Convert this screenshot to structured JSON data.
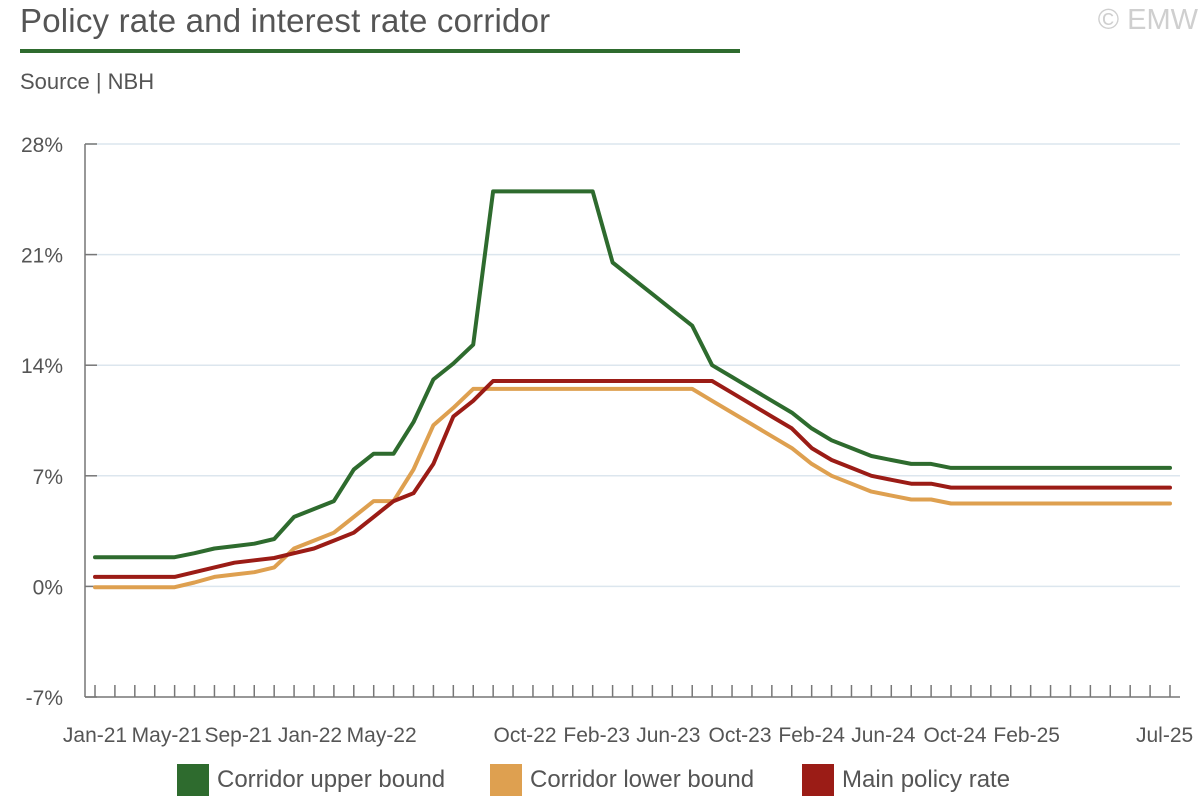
{
  "header": {
    "title": "Policy rate and interest rate corridor",
    "copyright": "© EMW",
    "source": "Source | NBH"
  },
  "colors": {
    "upper": "#2e6b2e",
    "lower": "#dea050",
    "policy": "#9b1c16",
    "grid": "#dce6ee",
    "axis": "#777777"
  },
  "chart_data": {
    "type": "line",
    "xlabel": "",
    "ylabel": "",
    "ylim": [
      -7,
      28
    ],
    "yticks": [
      -7,
      0,
      7,
      14,
      21,
      28
    ],
    "ytick_labels": [
      "-7%",
      "0%",
      "7%",
      "14%",
      "21%",
      "28%"
    ],
    "grid": "horizontal",
    "legend_position": "bottom",
    "x": [
      "Jan-21",
      "Feb-21",
      "Mar-21",
      "Apr-21",
      "May-21",
      "Jun-21",
      "Jul-21",
      "Aug-21",
      "Sep-21",
      "Oct-21",
      "Nov-21",
      "Dec-21",
      "Jan-22",
      "Feb-22",
      "Mar-22",
      "Apr-22",
      "May-22",
      "Jun-22",
      "Jul-22",
      "Aug-22",
      "Sep-22",
      "Oct-22",
      "Nov-22",
      "Dec-22",
      "Jan-23",
      "Feb-23",
      "Mar-23",
      "Apr-23",
      "May-23",
      "Jun-23",
      "Jul-23",
      "Aug-23",
      "Sep-23",
      "Oct-23",
      "Nov-23",
      "Dec-23",
      "Jan-24",
      "Feb-24",
      "Mar-24",
      "Apr-24",
      "May-24",
      "Jun-24",
      "Jul-24",
      "Aug-24",
      "Sep-24",
      "Oct-24",
      "Nov-24",
      "Dec-24",
      "Jan-25",
      "Feb-25",
      "Mar-25",
      "Apr-25",
      "May-25",
      "Jun-25",
      "Jul-25"
    ],
    "x_tick_labels": [
      "Jan-21",
      "May-21",
      "Sep-21",
      "Jan-22",
      "May-22",
      "",
      "Oct-22",
      "Feb-23",
      "Jun-23",
      "Oct-23",
      "Feb-24",
      "Jun-24",
      "Oct-24",
      "Feb-25",
      "",
      "Jul-25"
    ],
    "series": [
      {
        "name": "Corridor upper bound",
        "values": [
          1.85,
          1.85,
          1.85,
          1.85,
          1.85,
          2.1,
          2.4,
          2.55,
          2.7,
          3.0,
          4.4,
          4.9,
          5.4,
          7.4,
          8.4,
          8.4,
          10.4,
          13.1,
          14.1,
          15.3,
          25.0,
          25.0,
          25.0,
          25.0,
          25.0,
          25.0,
          20.5,
          19.5,
          18.5,
          17.5,
          16.5,
          14.0,
          13.25,
          12.5,
          11.75,
          11.0,
          10.0,
          9.25,
          8.75,
          8.25,
          8.0,
          7.75,
          7.75,
          7.5,
          7.5,
          7.5,
          7.5,
          7.5,
          7.5,
          7.5,
          7.5,
          7.5,
          7.5,
          7.5,
          7.5
        ]
      },
      {
        "name": "Corridor lower bound",
        "values": [
          -0.05,
          -0.05,
          -0.05,
          -0.05,
          -0.05,
          0.25,
          0.6,
          0.75,
          0.9,
          1.2,
          2.4,
          2.9,
          3.4,
          4.4,
          5.4,
          5.4,
          7.4,
          10.2,
          11.3,
          12.5,
          12.5,
          12.5,
          12.5,
          12.5,
          12.5,
          12.5,
          12.5,
          12.5,
          12.5,
          12.5,
          12.5,
          11.75,
          11.0,
          10.25,
          9.5,
          8.75,
          7.75,
          7.0,
          6.5,
          6.0,
          5.75,
          5.5,
          5.5,
          5.25,
          5.25,
          5.25,
          5.25,
          5.25,
          5.25,
          5.25,
          5.25,
          5.25,
          5.25,
          5.25,
          5.25
        ]
      },
      {
        "name": "Main policy rate",
        "values": [
          0.6,
          0.6,
          0.6,
          0.6,
          0.6,
          0.9,
          1.2,
          1.5,
          1.65,
          1.8,
          2.1,
          2.4,
          2.9,
          3.4,
          4.4,
          5.4,
          5.9,
          7.75,
          10.75,
          11.75,
          13.0,
          13.0,
          13.0,
          13.0,
          13.0,
          13.0,
          13.0,
          13.0,
          13.0,
          13.0,
          13.0,
          13.0,
          12.25,
          11.5,
          10.75,
          10.0,
          8.75,
          8.0,
          7.5,
          7.0,
          6.75,
          6.5,
          6.5,
          6.25,
          6.25,
          6.25,
          6.25,
          6.25,
          6.25,
          6.25,
          6.25,
          6.25,
          6.25,
          6.25,
          6.25
        ]
      }
    ]
  }
}
